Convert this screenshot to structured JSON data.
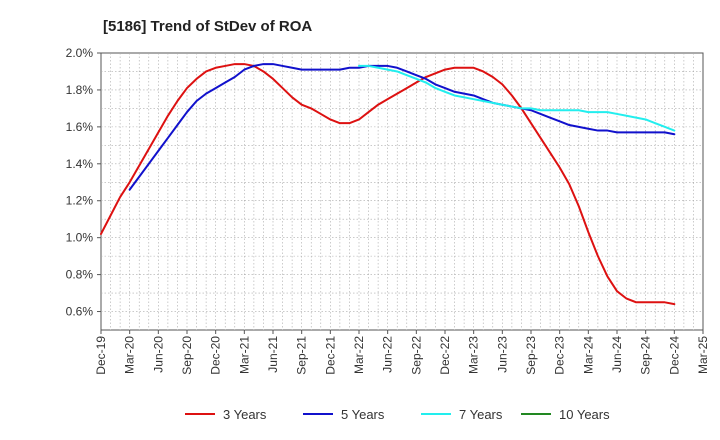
{
  "chart_data": {
    "type": "line",
    "title": "[5186]  Trend of StDev of ROA",
    "xlabel": "",
    "ylabel": "",
    "x_tick_labels": [
      "Dec-19",
      "Mar-20",
      "Jun-20",
      "Sep-20",
      "Dec-20",
      "Mar-21",
      "Jun-21",
      "Sep-21",
      "Dec-21",
      "Mar-22",
      "Jun-22",
      "Sep-22",
      "Dec-22",
      "Mar-23",
      "Jun-23",
      "Sep-23",
      "Dec-23",
      "Mar-24",
      "Jun-24",
      "Sep-24",
      "Dec-24",
      "Mar-25"
    ],
    "y_tick_labels": [
      "0.6%",
      "0.8%",
      "1.0%",
      "1.2%",
      "1.4%",
      "1.6%",
      "1.8%",
      "2.0%"
    ],
    "ylim": [
      0.5,
      2.0
    ],
    "y_unit": "%",
    "grid": true,
    "legend_position": "bottom",
    "series": [
      {
        "name": "3 Years",
        "color": "#dd1111",
        "x": [
          "Dec-19",
          "Jan-20",
          "Feb-20",
          "Mar-20",
          "Apr-20",
          "May-20",
          "Jun-20",
          "Jul-20",
          "Aug-20",
          "Sep-20",
          "Oct-20",
          "Nov-20",
          "Dec-20",
          "Jan-21",
          "Feb-21",
          "Mar-21",
          "Apr-21",
          "May-21",
          "Jun-21",
          "Jul-21",
          "Aug-21",
          "Sep-21",
          "Oct-21",
          "Nov-21",
          "Dec-21",
          "Jan-22",
          "Feb-22",
          "Mar-22",
          "Apr-22",
          "May-22",
          "Jun-22",
          "Jul-22",
          "Aug-22",
          "Sep-22",
          "Oct-22",
          "Nov-22",
          "Dec-22",
          "Jan-23",
          "Feb-23",
          "Mar-23",
          "Apr-23",
          "May-23",
          "Jun-23",
          "Jul-23",
          "Aug-23",
          "Sep-23",
          "Oct-23",
          "Nov-23",
          "Dec-23",
          "Jan-24",
          "Feb-24",
          "Mar-24",
          "Apr-24",
          "May-24",
          "Jun-24",
          "Jul-24",
          "Aug-24",
          "Sep-24",
          "Oct-24",
          "Nov-24",
          "Dec-24"
        ],
        "values": [
          1.02,
          1.12,
          1.22,
          1.3,
          1.39,
          1.48,
          1.57,
          1.66,
          1.74,
          1.81,
          1.86,
          1.9,
          1.92,
          1.93,
          1.94,
          1.94,
          1.93,
          1.9,
          1.86,
          1.81,
          1.76,
          1.72,
          1.7,
          1.67,
          1.64,
          1.62,
          1.62,
          1.64,
          1.68,
          1.72,
          1.75,
          1.78,
          1.81,
          1.84,
          1.87,
          1.89,
          1.91,
          1.92,
          1.92,
          1.92,
          1.9,
          1.87,
          1.83,
          1.77,
          1.7,
          1.62,
          1.54,
          1.46,
          1.38,
          1.29,
          1.17,
          1.03,
          0.9,
          0.79,
          0.71,
          0.67,
          0.65,
          0.65,
          0.65,
          0.65,
          0.64
        ]
      },
      {
        "name": "5 Years",
        "color": "#1111cc",
        "x": [
          "Mar-20",
          "Apr-20",
          "May-20",
          "Jun-20",
          "Jul-20",
          "Aug-20",
          "Sep-20",
          "Oct-20",
          "Nov-20",
          "Dec-20",
          "Jan-21",
          "Feb-21",
          "Mar-21",
          "Apr-21",
          "May-21",
          "Jun-21",
          "Jul-21",
          "Aug-21",
          "Sep-21",
          "Oct-21",
          "Nov-21",
          "Dec-21",
          "Jan-22",
          "Feb-22",
          "Mar-22",
          "Apr-22",
          "May-22",
          "Jun-22",
          "Jul-22",
          "Aug-22",
          "Sep-22",
          "Oct-22",
          "Nov-22",
          "Dec-22",
          "Jan-23",
          "Feb-23",
          "Mar-23",
          "Apr-23",
          "May-23",
          "Jun-23",
          "Jul-23",
          "Aug-23",
          "Sep-23",
          "Oct-23",
          "Nov-23",
          "Dec-23",
          "Jan-24",
          "Feb-24",
          "Mar-24",
          "Apr-24",
          "May-24",
          "Jun-24",
          "Jul-24",
          "Aug-24",
          "Sep-24",
          "Oct-24",
          "Nov-24",
          "Dec-24"
        ],
        "values": [
          1.26,
          1.33,
          1.4,
          1.47,
          1.54,
          1.61,
          1.68,
          1.74,
          1.78,
          1.81,
          1.84,
          1.87,
          1.91,
          1.93,
          1.94,
          1.94,
          1.93,
          1.92,
          1.91,
          1.91,
          1.91,
          1.91,
          1.91,
          1.92,
          1.92,
          1.93,
          1.93,
          1.93,
          1.92,
          1.9,
          1.88,
          1.86,
          1.83,
          1.81,
          1.79,
          1.78,
          1.77,
          1.75,
          1.73,
          1.72,
          1.71,
          1.7,
          1.69,
          1.67,
          1.65,
          1.63,
          1.61,
          1.6,
          1.59,
          1.58,
          1.58,
          1.57,
          1.57,
          1.57,
          1.57,
          1.57,
          1.57,
          1.56
        ]
      },
      {
        "name": "7 Years",
        "color": "#22eeee",
        "x": [
          "Mar-22",
          "Apr-22",
          "May-22",
          "Jun-22",
          "Jul-22",
          "Aug-22",
          "Sep-22",
          "Oct-22",
          "Nov-22",
          "Dec-22",
          "Jan-23",
          "Feb-23",
          "Mar-23",
          "Apr-23",
          "May-23",
          "Jun-23",
          "Jul-23",
          "Aug-23",
          "Sep-23",
          "Oct-23",
          "Nov-23",
          "Dec-23",
          "Jan-24",
          "Feb-24",
          "Mar-24",
          "Apr-24",
          "May-24",
          "Jun-24",
          "Jul-24",
          "Aug-24",
          "Sep-24",
          "Oct-24",
          "Nov-24",
          "Dec-24"
        ],
        "values": [
          1.93,
          1.93,
          1.92,
          1.91,
          1.9,
          1.88,
          1.86,
          1.84,
          1.81,
          1.79,
          1.77,
          1.76,
          1.75,
          1.74,
          1.73,
          1.72,
          1.71,
          1.7,
          1.7,
          1.69,
          1.69,
          1.69,
          1.69,
          1.69,
          1.68,
          1.68,
          1.68,
          1.67,
          1.66,
          1.65,
          1.64,
          1.62,
          1.6,
          1.58
        ]
      },
      {
        "name": "10 Years",
        "color": "#228822",
        "x": [],
        "values": []
      }
    ]
  }
}
